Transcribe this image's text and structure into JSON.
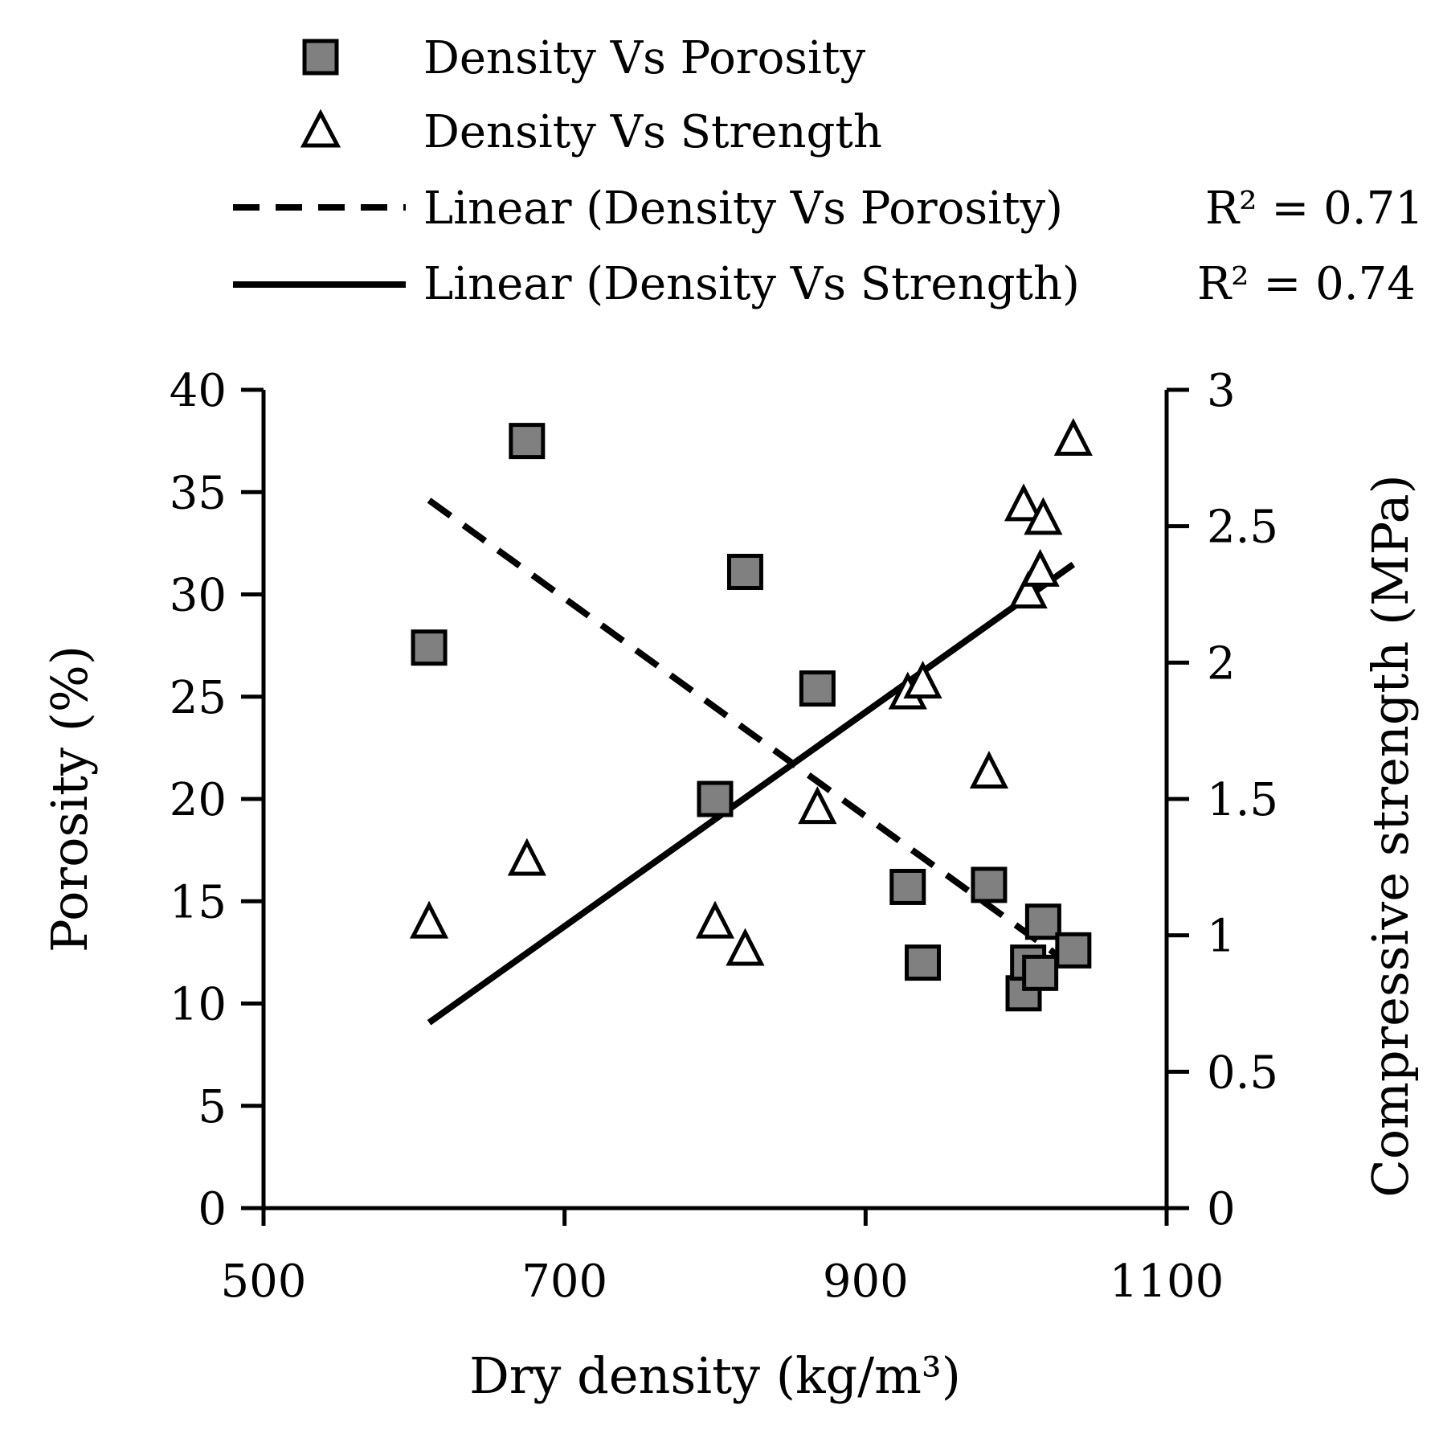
{
  "chart_data": {
    "type": "scatter",
    "xlabel": "Dry density (kg/m³)",
    "ylabel": "Porosity (%)",
    "y2label": "Compressive strength (MPa)",
    "xlim": [
      500,
      1100
    ],
    "ylim": [
      0,
      40
    ],
    "y2lim": [
      0,
      3
    ],
    "x_ticks": [
      "500",
      "700",
      "900",
      "1100"
    ],
    "y_ticks": [
      "0",
      "5",
      "10",
      "15",
      "20",
      "25",
      "30",
      "35",
      "40"
    ],
    "y2_ticks": [
      "0",
      "0.5",
      "1",
      "1.5",
      "2",
      "2.5",
      "3"
    ],
    "grid": false,
    "legend_position": "top",
    "series": [
      {
        "name": "Density Vs Porosity",
        "axis": "left",
        "marker": "square",
        "color": "#808080",
        "points": [
          {
            "x": 610,
            "y": 27.4
          },
          {
            "x": 675,
            "y": 37.5
          },
          {
            "x": 800,
            "y": 20.0
          },
          {
            "x": 820,
            "y": 31.1
          },
          {
            "x": 868,
            "y": 25.4
          },
          {
            "x": 928,
            "y": 15.7
          },
          {
            "x": 938,
            "y": 12.0
          },
          {
            "x": 982,
            "y": 15.8
          },
          {
            "x": 1005,
            "y": 10.5
          },
          {
            "x": 1008,
            "y": 12.0
          },
          {
            "x": 1016,
            "y": 11.5
          },
          {
            "x": 1018,
            "y": 14.0
          },
          {
            "x": 1038,
            "y": 12.6
          }
        ]
      },
      {
        "name": "Density Vs Strength",
        "axis": "right",
        "marker": "triangle",
        "color": "#ffffff",
        "points": [
          {
            "x": 610,
            "y": 1.04
          },
          {
            "x": 675,
            "y": 1.27
          },
          {
            "x": 800,
            "y": 1.04
          },
          {
            "x": 820,
            "y": 0.94
          },
          {
            "x": 868,
            "y": 1.46
          },
          {
            "x": 928,
            "y": 1.88
          },
          {
            "x": 938,
            "y": 1.92
          },
          {
            "x": 982,
            "y": 1.59
          },
          {
            "x": 1005,
            "y": 2.57
          },
          {
            "x": 1008,
            "y": 2.25
          },
          {
            "x": 1016,
            "y": 2.33
          },
          {
            "x": 1018,
            "y": 2.52
          },
          {
            "x": 1038,
            "y": 2.81
          }
        ]
      }
    ],
    "trendlines": [
      {
        "name": "Linear (Density Vs Porosity)",
        "axis": "left",
        "style": "dashed",
        "r2_label": "R² = 0.71",
        "x": [
          610,
          1038
        ],
        "y": [
          34.6,
          11.8
        ]
      },
      {
        "name": "Linear (Density Vs Strength)",
        "axis": "right",
        "style": "solid",
        "r2_label": "R² = 0.74",
        "x": [
          610,
          1038
        ],
        "y": [
          0.68,
          2.36
        ]
      }
    ]
  }
}
